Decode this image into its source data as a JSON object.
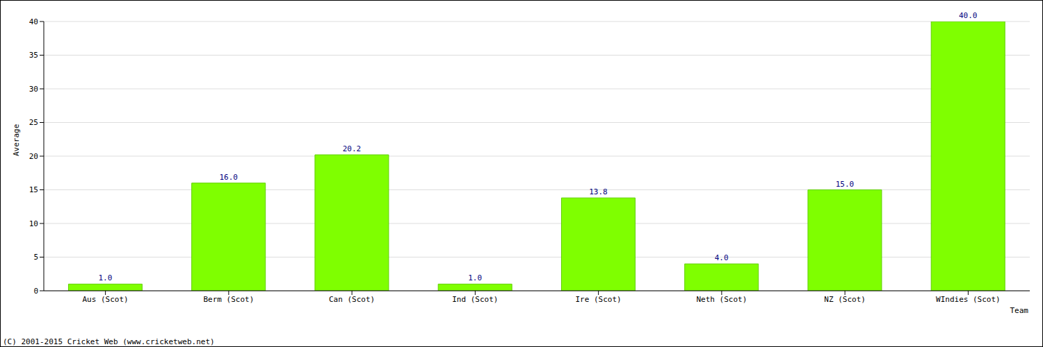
{
  "chart_data": {
    "type": "bar",
    "x_label": "Team",
    "y_label": "Average",
    "categories": [
      "Aus (Scot)",
      "Berm (Scot)",
      "Can (Scot)",
      "Ind (Scot)",
      "Ire (Scot)",
      "Neth (Scot)",
      "NZ (Scot)",
      "WIndies (Scot)"
    ],
    "values": [
      1,
      16,
      20.2,
      1,
      13.8,
      4,
      15,
      40
    ],
    "value_labels": [
      "1.0",
      "16.0",
      "20.2",
      "1.0",
      "13.8",
      "4.0",
      "15.0",
      "40.0"
    ],
    "color": "#7fff00",
    "ylim": [
      0,
      40
    ],
    "yticks": [
      0,
      5,
      10,
      15,
      20,
      25,
      30,
      35,
      40
    ],
    "grid": true,
    "data_labels": true,
    "annotations": [
      "(C) 2001-2015 Cricket Web (www.cricketweb.net)"
    ]
  }
}
